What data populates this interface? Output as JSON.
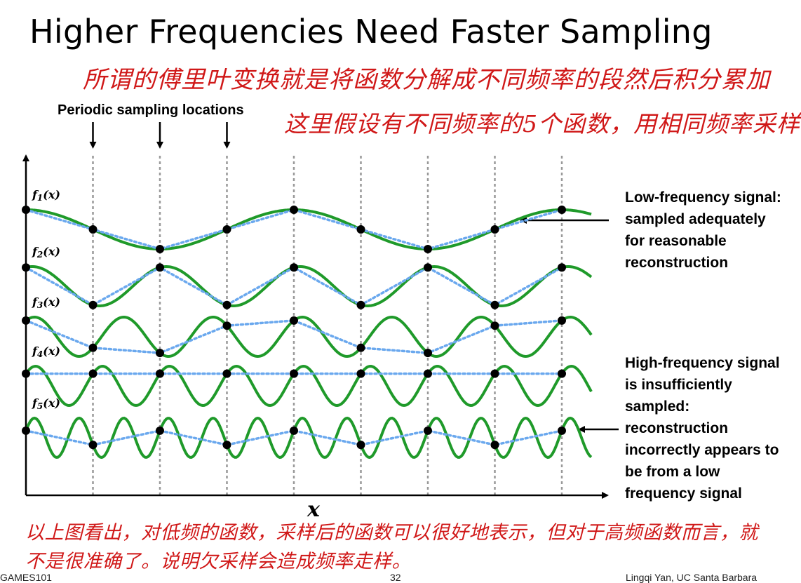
{
  "title": "Higher Frequencies Need Faster Sampling",
  "handwritten_notes": [
    "所谓的傅里叶变换就是将函数分解成不同频率的段然后积分累加",
    "这里假设有不同频率的5个函数，用相同频率采样。",
    "以上图看出，对低频的函数，采样后的函数可以很好地表示，但对于高频函数而言，就",
    "不是很准确了。说明欠采样会造成频率走样。"
  ],
  "sampling_label": "Periodic sampling locations",
  "low_freq_text": [
    "Low-frequency signal:",
    "sampled adequately",
    "for reasonable",
    "reconstruction"
  ],
  "high_freq_text": [
    "High-frequency signal",
    "is insufficiently",
    "sampled:",
    "reconstruction",
    "incorrectly appears to",
    "be from a low",
    "frequency signal"
  ],
  "x_axis_label": "x",
  "function_labels": [
    "f1(x)",
    "f2(x)",
    "f3(x)",
    "f4(x)",
    "f5(x)"
  ],
  "signals": [
    {
      "name": "f1(x)",
      "cycles_per_sample": 0.25
    },
    {
      "name": "f2(x)",
      "cycles_per_sample": 0.5
    },
    {
      "name": "f3(x)",
      "cycles_per_sample": 0.75
    },
    {
      "name": "f4(x)",
      "cycles_per_sample": 1.0
    },
    {
      "name": "f5(x)",
      "cycles_per_sample": 1.5
    }
  ],
  "sample_count": 9,
  "colors": {
    "signal": "#1f9a2a",
    "reconstruction": "#6aa8ee",
    "note": "#d01818"
  },
  "footer": {
    "left": "GAMES101",
    "center": "32",
    "right": "Lingqi Yan, UC Santa Barbara"
  }
}
